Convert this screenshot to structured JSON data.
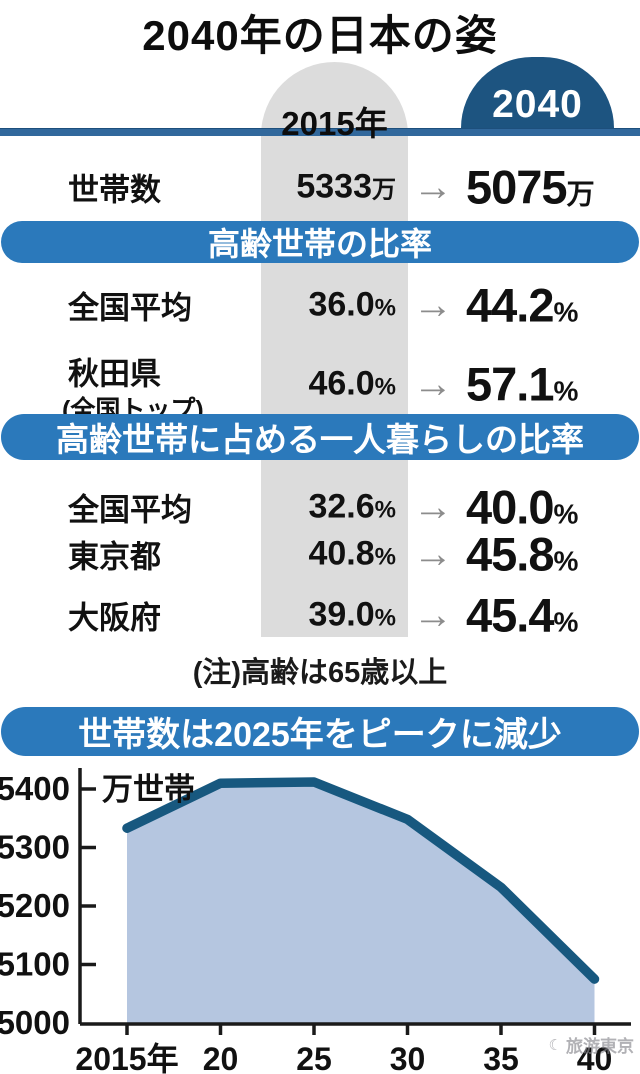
{
  "header": {
    "title": "2040年の日本の姿",
    "col_2015": "2015年",
    "col_2040": "2040",
    "arrow": "→"
  },
  "sections": {
    "elderly_ratio": "高齢世帯の比率",
    "single_living_ratio": "高齢世帯に占める一人暮らしの比率",
    "chart_banner": "世帯数は2025年をピークに減少"
  },
  "table": {
    "rows": [
      {
        "label": "世帯数",
        "v2015": "5333",
        "u2015": "万",
        "v2040": "5075",
        "u2040": "万"
      },
      {
        "label": "全国平均",
        "v2015": "36.0",
        "u2015": "%",
        "v2040": "44.2",
        "u2040": "%"
      },
      {
        "label": "秋田県",
        "sublabel": "(全国トップ)",
        "v2015": "46.0",
        "u2015": "%",
        "v2040": "57.1",
        "u2040": "%"
      },
      {
        "label": "全国平均",
        "v2015": "32.6",
        "u2015": "%",
        "v2040": "40.0",
        "u2040": "%"
      },
      {
        "label": "東京都",
        "v2015": "40.8",
        "u2015": "%",
        "v2040": "45.8",
        "u2040": "%"
      },
      {
        "label": "大阪府",
        "v2015": "39.0",
        "u2015": "%",
        "v2040": "45.4",
        "u2040": "%"
      }
    ]
  },
  "note": "(注)高齢は65歳以上",
  "watermark": "旅游東京",
  "colors": {
    "navy": "#1d5480",
    "banner_blue": "#2b79bb",
    "rule_blue": "#31689c",
    "column_gray": "#dcdcdc",
    "arrow_gray": "#8c8c8c"
  },
  "chart_data": {
    "type": "area",
    "title": "世帯数は2025年をピークに減少",
    "x": [
      2015,
      2020,
      2025,
      2030,
      2035,
      2040
    ],
    "x_tick_labels": [
      "2015年",
      "20",
      "25",
      "30",
      "35",
      "40"
    ],
    "values": [
      5333,
      5410,
      5412,
      5348,
      5232,
      5075
    ],
    "ylabel": "万世帯",
    "ylim": [
      5000,
      5450
    ],
    "yticks": [
      5000,
      5100,
      5200,
      5300,
      5400
    ],
    "grid": false,
    "legend": "none",
    "line_color": "#17587f",
    "fill_color": "#b5c6e0"
  }
}
